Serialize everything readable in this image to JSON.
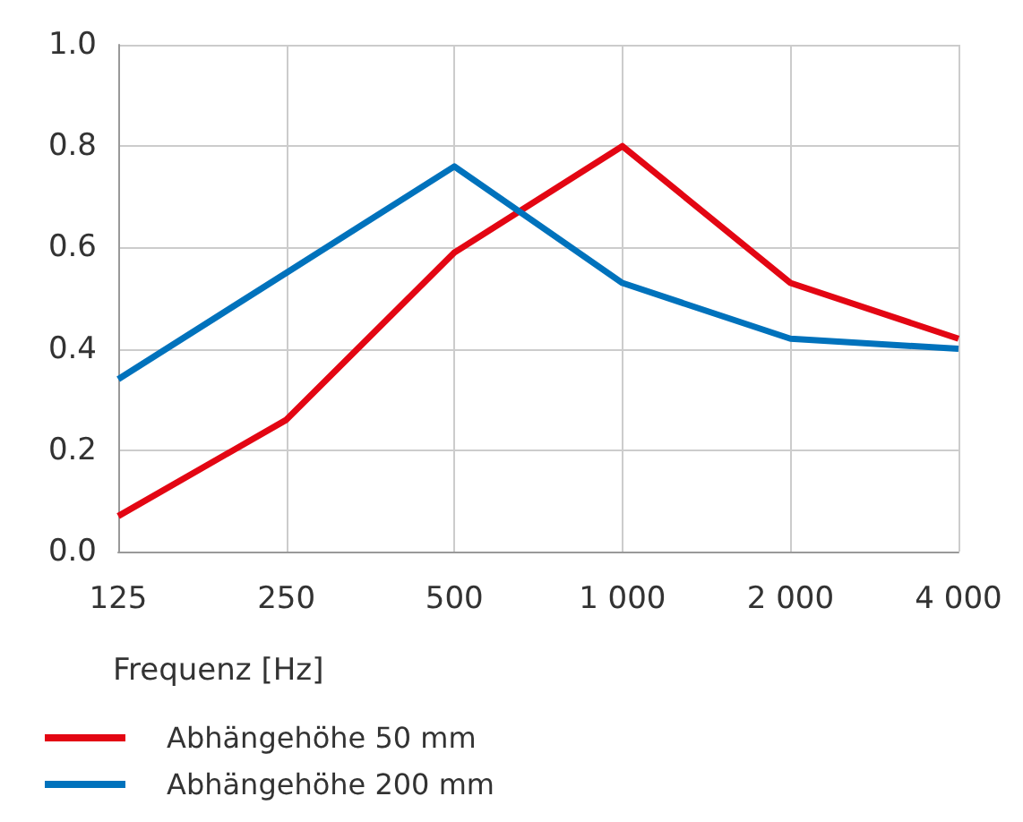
{
  "chart_data": {
    "type": "line",
    "xlabel": "Frequenz [Hz]",
    "categories": [
      "125",
      "250",
      "500",
      "1 000",
      "2 000",
      "4 000"
    ],
    "series": [
      {
        "name": "Abhängehöhe 50 mm",
        "color": "#e30613",
        "values": [
          0.07,
          0.26,
          0.59,
          0.8,
          0.53,
          0.42
        ]
      },
      {
        "name": "Abhängehöhe 200 mm",
        "color": "#0072bc",
        "values": [
          0.34,
          0.55,
          0.76,
          0.53,
          0.42,
          0.4
        ]
      }
    ],
    "ylim": [
      0,
      1
    ],
    "yticks": [
      {
        "value": 0,
        "label": "0.0"
      },
      {
        "value": 0.2,
        "label": "0.2"
      },
      {
        "value": 0.4,
        "label": "0.4"
      },
      {
        "value": 0.6,
        "label": "0.6"
      },
      {
        "value": 0.8,
        "label": "0.8"
      },
      {
        "value": 1,
        "label": "1.0"
      }
    ],
    "grid": true,
    "legend": "bottom left",
    "marker": "none",
    "line_style": "solid"
  }
}
